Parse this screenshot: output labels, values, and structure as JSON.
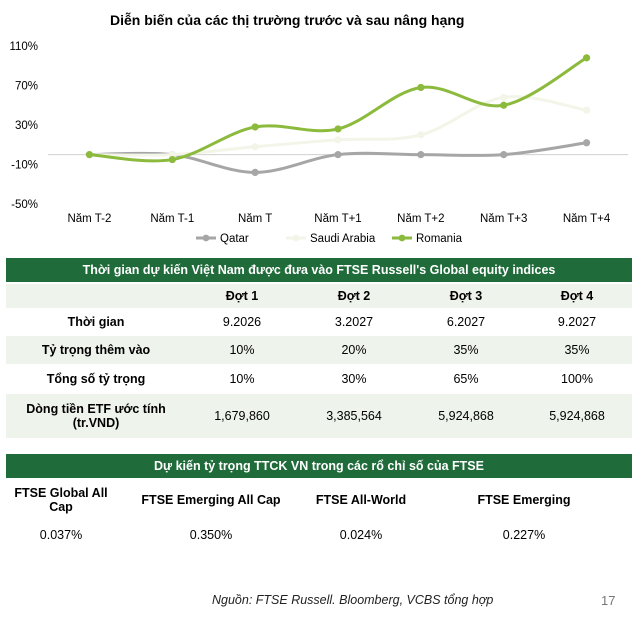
{
  "chart_data": {
    "type": "line",
    "title": "Diễn biến của các thị trường trước và sau nâng hạng",
    "categories": [
      "Năm T-2",
      "Năm T-1",
      "Năm T",
      "Năm T+1",
      "Năm T+2",
      "Năm T+3",
      "Năm T+4"
    ],
    "yticks": [
      "110%",
      "70%",
      "30%",
      "-10%",
      "-50%"
    ],
    "ylim": [
      -50,
      110
    ],
    "series": [
      {
        "name": "Qatar",
        "color": "#a6a6a6",
        "values": [
          0,
          0,
          -18,
          0,
          0,
          0,
          12
        ]
      },
      {
        "name": "Saudi Arabia",
        "color": "#f2f5e8",
        "values": [
          0,
          0,
          8,
          15,
          20,
          58,
          45
        ]
      },
      {
        "name": "Romania",
        "color": "#8bba3c",
        "values": [
          0,
          -5,
          28,
          26,
          68,
          50,
          98
        ]
      }
    ],
    "legend": "bottom",
    "grid": false
  },
  "table1": {
    "title": "Thời gian dự kiến Việt Nam được đưa vào FTSE Russell's Global equity indices",
    "headers": [
      "",
      "Đợt 1",
      "Đợt 2",
      "Đợt 3",
      "Đợt 4"
    ],
    "rows": [
      {
        "label": "Thời gian",
        "values": [
          "9.2026",
          "3.2027",
          "6.2027",
          "9.2027"
        ]
      },
      {
        "label": "Tỷ trọng thêm vào",
        "values": [
          "10%",
          "20%",
          "35%",
          "35%"
        ]
      },
      {
        "label": "Tổng số tỷ trọng",
        "values": [
          "10%",
          "30%",
          "65%",
          "100%"
        ]
      },
      {
        "label": "Dòng tiền ETF ước tính (tr.VND)",
        "values": [
          "1,679,860",
          "3,385,564",
          "5,924,868",
          "5,924,868"
        ]
      }
    ]
  },
  "table2": {
    "title": "Dự kiến tỷ trọng TTCK VN trong các rổ chỉ số của FTSE",
    "headers": [
      "FTSE Global All Cap",
      "FTSE Emerging All Cap",
      "FTSE All-World",
      "FTSE Emerging"
    ],
    "values": [
      "0.037%",
      "0.350%",
      "0.024%",
      "0.227%"
    ]
  },
  "footer": {
    "source": "Nguồn: FTSE Russell. Bloomberg, VCBS tổng hợp",
    "page": "17"
  }
}
